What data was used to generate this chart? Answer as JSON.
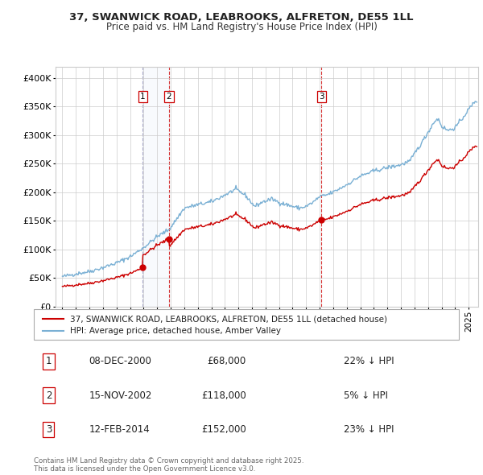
{
  "title": "37, SWANWICK ROAD, LEABROOKS, ALFRETON, DE55 1LL",
  "subtitle": "Price paid vs. HM Land Registry's House Price Index (HPI)",
  "legend_label_red": "37, SWANWICK ROAD, LEABROOKS, ALFRETON, DE55 1LL (detached house)",
  "legend_label_blue": "HPI: Average price, detached house, Amber Valley",
  "sale_labels": [
    "1",
    "2",
    "3"
  ],
  "sale_dates_label": [
    "08-DEC-2000",
    "15-NOV-2002",
    "12-FEB-2014"
  ],
  "sale_prices_label": [
    "£68,000",
    "£118,000",
    "£152,000"
  ],
  "sale_hpi_label": [
    "22% ↓ HPI",
    "5% ↓ HPI",
    "23% ↓ HPI"
  ],
  "sale_dates_num": [
    2000.94,
    2002.88,
    2014.12
  ],
  "sale_prices": [
    68000,
    118000,
    152000
  ],
  "footer": "Contains HM Land Registry data © Crown copyright and database right 2025.\nThis data is licensed under the Open Government Licence v3.0.",
  "ylim": [
    0,
    420000
  ],
  "yticks": [
    0,
    50000,
    100000,
    150000,
    200000,
    250000,
    300000,
    350000,
    400000
  ],
  "ytick_labels": [
    "£0",
    "£50K",
    "£100K",
    "£150K",
    "£200K",
    "£250K",
    "£300K",
    "£350K",
    "£400K"
  ],
  "xlim": [
    1994.5,
    2025.7
  ],
  "red_color": "#cc0000",
  "blue_color": "#7ab0d4",
  "shade_color": "#dce8f5",
  "vline_color": "#cc0000",
  "vline1_color": "#aaaacc",
  "background_color": "#ffffff",
  "grid_color": "#cccccc"
}
